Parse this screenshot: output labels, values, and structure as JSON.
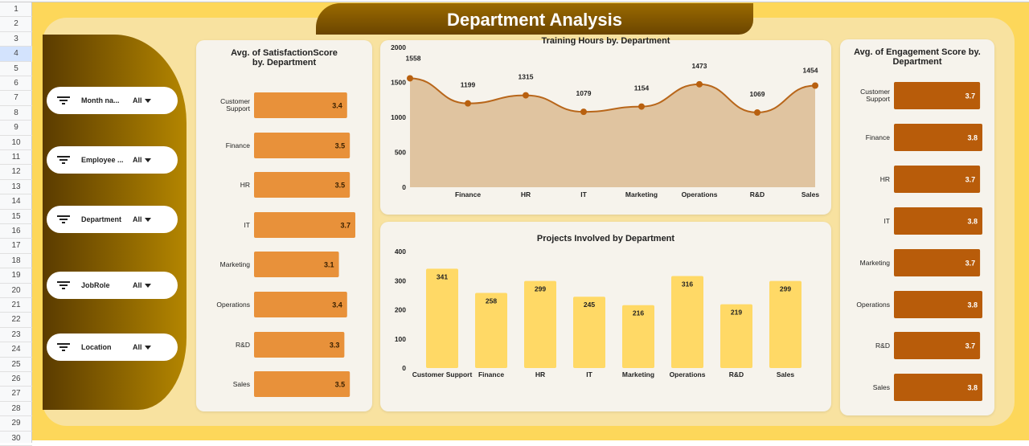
{
  "spreadsheet": {
    "rows": [
      "1",
      "2",
      "3",
      "4",
      "5",
      "6",
      "7",
      "8",
      "9",
      "10",
      "11",
      "12",
      "13",
      "14",
      "15",
      "16",
      "17",
      "18",
      "19",
      "20",
      "21",
      "22",
      "23",
      "24",
      "25",
      "26",
      "27",
      "28",
      "29",
      "30"
    ],
    "selected_row": "4"
  },
  "title": "Department Analysis",
  "filters": [
    {
      "label": "Month na...",
      "value": "All",
      "icon": "filter-icon"
    },
    {
      "label": "Employee ...",
      "value": "All",
      "icon": "filter-icon"
    },
    {
      "label": "Department",
      "value": "All",
      "icon": "filter-icon"
    },
    {
      "label": "JobRole",
      "value": "All",
      "icon": "filter-icon"
    },
    {
      "label": "Location",
      "value": "All",
      "icon": "filter-icon"
    }
  ],
  "colors": {
    "background": "#FDD75A",
    "banner": "#7d5500",
    "satisfaction_bar": "#E8913A",
    "engagement_bar": "#B85C0A",
    "projects_bar": "#FFD966",
    "training_line": "#B8661A",
    "training_area": "#E0C4A0"
  },
  "chart_data": [
    {
      "type": "bar",
      "orientation": "horizontal",
      "title": "Avg. of SatisfactionScore by. Department",
      "categories": [
        "Customer Support",
        "Finance",
        "HR",
        "IT",
        "Marketing",
        "Operations",
        "R&D",
        "Sales"
      ],
      "values": [
        3.4,
        3.5,
        3.5,
        3.7,
        3.1,
        3.4,
        3.3,
        3.5
      ],
      "data_labels": [
        "3.4",
        "3.5",
        "3.5",
        "3.7",
        "3.1",
        "3.4",
        "3.3",
        "3.5"
      ]
    },
    {
      "type": "area",
      "title": "Training Hours by. Department",
      "x_labels": [
        "",
        "Finance",
        "HR",
        "IT",
        "Marketing",
        "Operations",
        "R&D",
        "Sales"
      ],
      "values": [
        1558,
        1199,
        1315,
        1079,
        1154,
        1473,
        1069,
        1454
      ],
      "data_labels": [
        "1558",
        "1199",
        "1315",
        "1079",
        "1154",
        "1473",
        "1069",
        "1454"
      ],
      "y_ticks": [
        "0",
        "500",
        "1000",
        "1500",
        "2000"
      ],
      "ylim": [
        0,
        2000
      ],
      "smooth": true
    },
    {
      "type": "bar",
      "title": "Projects Involved by Department",
      "categories": [
        "Customer Support",
        "Finance",
        "HR",
        "IT",
        "Marketing",
        "Operations",
        "R&D",
        "Sales"
      ],
      "values": [
        341,
        258,
        299,
        245,
        216,
        316,
        219,
        299
      ],
      "data_labels": [
        "341",
        "258",
        "299",
        "245",
        "216",
        "316",
        "219",
        "299"
      ],
      "y_ticks": [
        "0",
        "100",
        "200",
        "300",
        "400"
      ],
      "ylim": [
        0,
        400
      ]
    },
    {
      "type": "bar",
      "orientation": "horizontal",
      "title": "Avg. of Engagement Score by. Department",
      "categories": [
        "Customer Support",
        "Finance",
        "HR",
        "IT",
        "Marketing",
        "Operations",
        "R&D",
        "Sales"
      ],
      "values": [
        3.7,
        3.8,
        3.7,
        3.8,
        3.7,
        3.8,
        3.7,
        3.8
      ],
      "data_labels": [
        "3.7",
        "3.8",
        "3.7",
        "3.8",
        "3.7",
        "3.8",
        "3.7",
        "3.8"
      ]
    }
  ]
}
